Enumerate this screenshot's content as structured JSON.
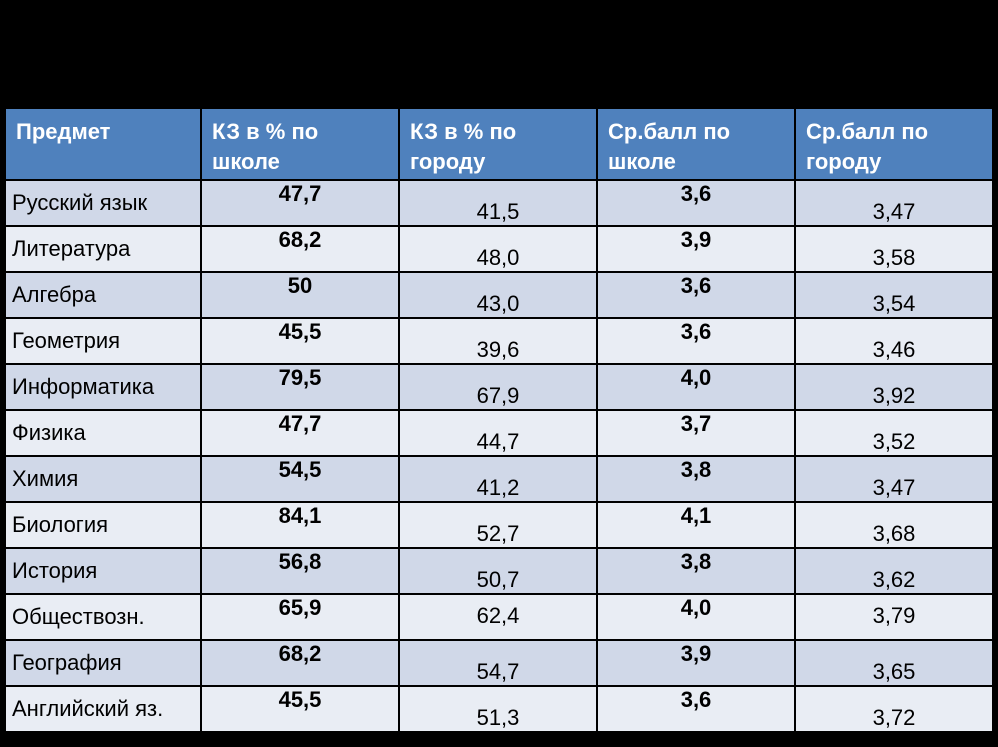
{
  "table": {
    "headers": [
      [
        "Предмет",
        ""
      ],
      [
        "КЗ в % по",
        "школе"
      ],
      [
        "КЗ в % по",
        "городу"
      ],
      [
        "Ср.балл по",
        "школе"
      ],
      [
        "Ср.балл по",
        "городу"
      ]
    ],
    "rows": [
      {
        "subject": "Русский язык",
        "kz_school": "47,7",
        "kz_city": "41,5",
        "avg_school": "3,6",
        "avg_city": "3,47"
      },
      {
        "subject": "Литература",
        "kz_school": "68,2",
        "kz_city": "48,0",
        "avg_school": "3,9",
        "avg_city": "3,58"
      },
      {
        "subject": "Алгебра",
        "kz_school": "50",
        "kz_city": "43,0",
        "avg_school": "3,6",
        "avg_city": "3,54"
      },
      {
        "subject": "Геометрия",
        "kz_school": "45,5",
        "kz_city": "39,6",
        "avg_school": "3,6",
        "avg_city": "3,46"
      },
      {
        "subject": "Информатика",
        "kz_school": "79,5",
        "kz_city": "67,9",
        "avg_school": "4,0",
        "avg_city": "3,92"
      },
      {
        "subject": "Физика",
        "kz_school": "47,7",
        "kz_city": "44,7",
        "avg_school": "3,7",
        "avg_city": "3,52"
      },
      {
        "subject": "Химия",
        "kz_school": "54,5",
        "kz_city": "41,2",
        "avg_school": "3,8",
        "avg_city": "3,47"
      },
      {
        "subject": "Биология",
        "kz_school": "84,1",
        "kz_city": "52,7",
        "avg_school": "4,1",
        "avg_city": "3,68"
      },
      {
        "subject": "История",
        "kz_school": "56,8",
        "kz_city": "50,7",
        "avg_school": "3,8",
        "avg_city": "3,62"
      },
      {
        "subject": "Обществозн.",
        "kz_school": "65,9",
        "kz_city": "62,4",
        "avg_school": "4,0",
        "avg_city": "3,79"
      },
      {
        "subject": "География",
        "kz_school": "68,2",
        "kz_city": "54,7",
        "avg_school": "3,9",
        "avg_city": "3,65"
      },
      {
        "subject": "Английский яз.",
        "kz_school": "45,5",
        "kz_city": "51,3",
        "avg_school": "3,6",
        "avg_city": "3,72"
      }
    ]
  },
  "colors": {
    "header_bg": "#4f81bd",
    "row_odd_bg": "#d0d8e8",
    "row_even_bg": "#e9edf4",
    "school_value": "#ff0000",
    "slide_bg": "#000000"
  }
}
